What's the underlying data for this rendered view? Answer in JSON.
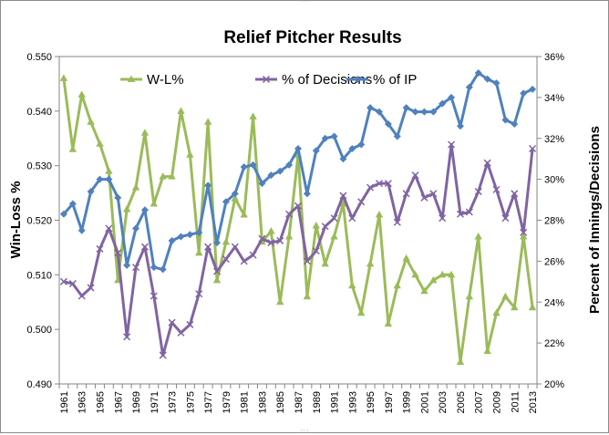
{
  "chart_data": {
    "type": "line",
    "title": "Relief Pitcher Results",
    "ylabel": "Win-Loss %",
    "y2label": "Percent of Innings/Decisions",
    "ylim": [
      0.49,
      0.55
    ],
    "y2lim": [
      0.2,
      0.36
    ],
    "yticks": [
      "0.490",
      "0.500",
      "0.510",
      "0.520",
      "0.530",
      "0.540",
      "0.550"
    ],
    "y2ticks": [
      "20%",
      "22%",
      "24%",
      "26%",
      "28%",
      "30%",
      "32%",
      "34%",
      "36%"
    ],
    "x": [
      1961,
      1962,
      1963,
      1964,
      1965,
      1966,
      1967,
      1968,
      1969,
      1970,
      1971,
      1972,
      1973,
      1974,
      1975,
      1976,
      1977,
      1978,
      1979,
      1980,
      1981,
      1982,
      1983,
      1984,
      1985,
      1986,
      1987,
      1988,
      1989,
      1990,
      1991,
      1992,
      1993,
      1994,
      1995,
      1996,
      1997,
      1998,
      1999,
      2000,
      2001,
      2002,
      2003,
      2004,
      2005,
      2006,
      2007,
      2008,
      2009,
      2010,
      2011,
      2012,
      2013
    ],
    "xticks": [
      "1961",
      "1963",
      "1965",
      "1967",
      "1969",
      "1971",
      "1973",
      "1975",
      "1977",
      "1979",
      "1981",
      "1983",
      "1985",
      "1987",
      "1989",
      "1991",
      "1993",
      "1995",
      "1997",
      "1999",
      "2001",
      "2003",
      "2005",
      "2007",
      "2009",
      "2011",
      "2013"
    ],
    "legend_position": "top",
    "grid": false,
    "series": [
      {
        "name": "W-L%",
        "axis": "left",
        "color": "#9bbb59",
        "marker": "triangle",
        "values": [
          0.546,
          0.533,
          0.543,
          0.538,
          0.534,
          0.529,
          0.509,
          0.522,
          0.526,
          0.536,
          0.523,
          0.528,
          0.528,
          0.54,
          0.532,
          0.514,
          0.538,
          0.509,
          0.516,
          0.524,
          0.521,
          0.539,
          0.516,
          0.518,
          0.505,
          0.517,
          0.532,
          0.506,
          0.519,
          0.512,
          0.517,
          0.523,
          0.508,
          0.503,
          0.512,
          0.521,
          0.501,
          0.508,
          0.513,
          0.51,
          0.507,
          0.509,
          0.51,
          0.51,
          0.494,
          0.506,
          0.517,
          0.496,
          0.503,
          0.506,
          0.504,
          0.517,
          0.504
        ]
      },
      {
        "name": "% of Decisions",
        "axis": "right",
        "color": "#8064a2",
        "marker": "x",
        "values": [
          0.25,
          0.249,
          0.243,
          0.247,
          0.266,
          0.276,
          0.264,
          0.223,
          0.257,
          0.267,
          0.243,
          0.214,
          0.23,
          0.225,
          0.229,
          0.244,
          0.267,
          0.255,
          0.261,
          0.267,
          0.26,
          0.263,
          0.271,
          0.269,
          0.27,
          0.283,
          0.287,
          0.26,
          0.265,
          0.277,
          0.281,
          0.292,
          0.281,
          0.289,
          0.296,
          0.298,
          0.298,
          0.279,
          0.293,
          0.302,
          0.291,
          0.293,
          0.281,
          0.317,
          0.283,
          0.284,
          0.294,
          0.308,
          0.295,
          0.281,
          0.293,
          0.274,
          0.315
        ]
      },
      {
        "name": "% of IP",
        "axis": "right",
        "color": "#4f81bd",
        "marker": "diamond",
        "values": [
          0.283,
          0.288,
          0.275,
          0.294,
          0.3,
          0.3,
          0.291,
          0.258,
          0.276,
          0.285,
          0.257,
          0.256,
          0.27,
          0.272,
          0.273,
          0.274,
          0.297,
          0.269,
          0.289,
          0.293,
          0.306,
          0.307,
          0.298,
          0.302,
          0.304,
          0.307,
          0.315,
          0.293,
          0.314,
          0.32,
          0.321,
          0.31,
          0.315,
          0.317,
          0.335,
          0.333,
          0.327,
          0.321,
          0.335,
          0.333,
          0.333,
          0.333,
          0.337,
          0.34,
          0.326,
          0.345,
          0.352,
          0.349,
          0.347,
          0.329,
          0.327,
          0.342,
          0.344
        ]
      }
    ]
  }
}
